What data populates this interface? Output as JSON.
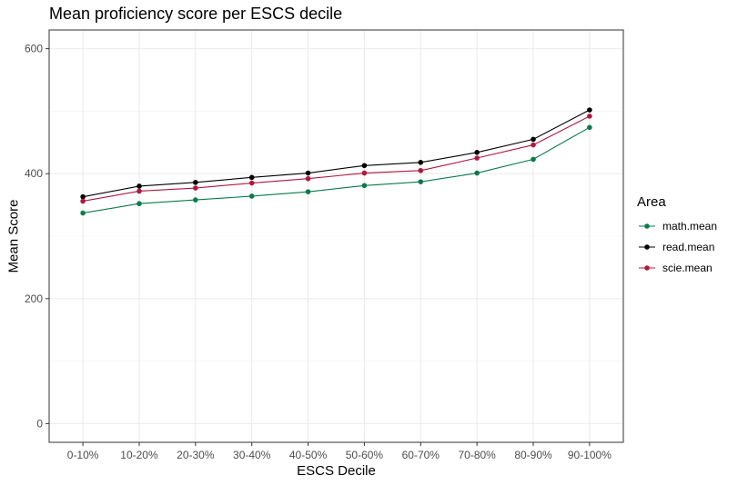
{
  "chart_data": {
    "type": "line",
    "title": "Mean proficiency score per ESCS decile",
    "xlabel": "ESCS Decile",
    "ylabel": "Mean Score",
    "categories": [
      "0-10%",
      "10-20%",
      "20-30%",
      "30-40%",
      "40-50%",
      "50-60%",
      "60-70%",
      "70-80%",
      "80-90%",
      "90-100%"
    ],
    "ylim": [
      -30,
      630
    ],
    "yticks": [
      0,
      200,
      400,
      600
    ],
    "grid": true,
    "legend": {
      "title": "Area",
      "position": "right"
    },
    "series": [
      {
        "name": "math.mean",
        "color": "#0a7a4a",
        "values": [
          337,
          352,
          358,
          364,
          371,
          381,
          387,
          401,
          423,
          474
        ]
      },
      {
        "name": "read.mean",
        "color": "#000000",
        "values": [
          363,
          380,
          386,
          394,
          401,
          413,
          418,
          434,
          455,
          502
        ]
      },
      {
        "name": "scie.mean",
        "color": "#b0173f",
        "values": [
          356,
          372,
          377,
          385,
          392,
          401,
          405,
          425,
          446,
          492
        ]
      }
    ]
  }
}
